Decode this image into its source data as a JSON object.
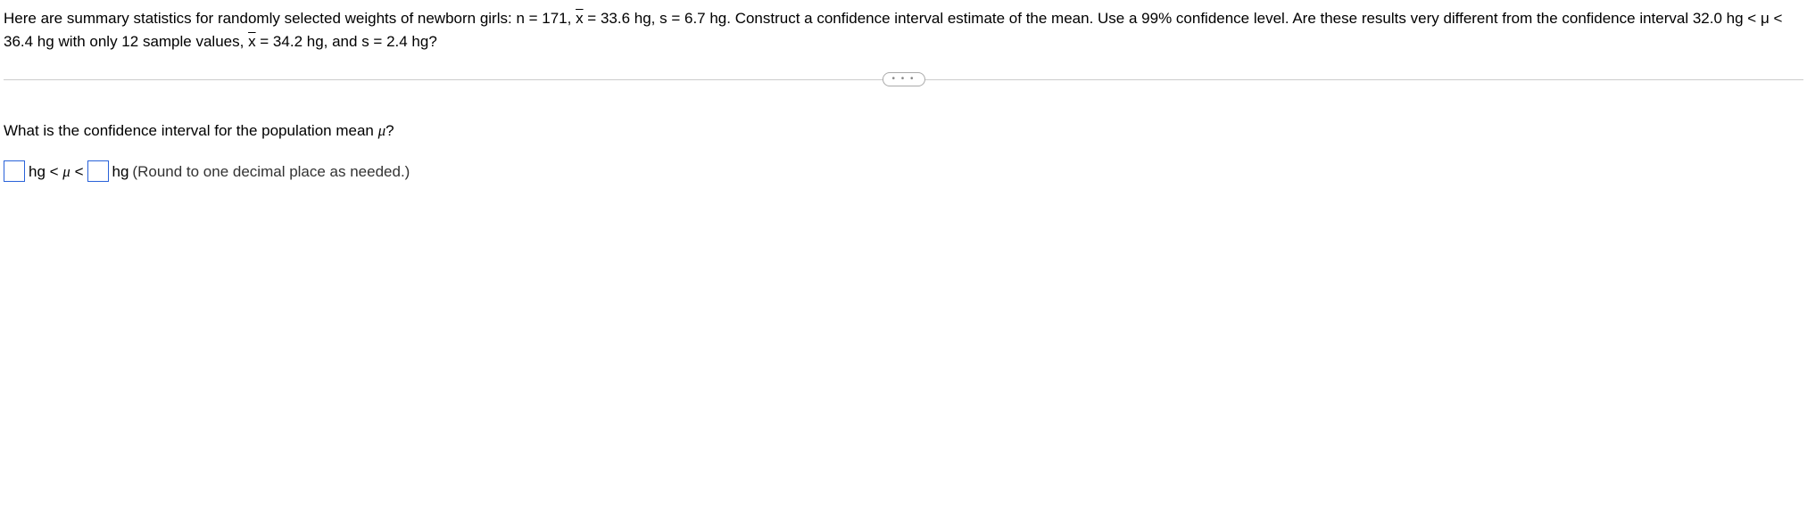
{
  "problem": {
    "part1": "Here are summary statistics for randomly selected weights of newborn girls: n = 171, ",
    "xbar_label": "x",
    "part2": " = 33.6 hg, s = 6.7 hg. Construct a confidence interval estimate of the mean. Use a 99% confidence level. Are these results very different from the confidence interval 32.0 hg < μ < 36.4 hg with only 12 sample values, ",
    "xbar_label2": "x",
    "part3": " = 34.2 hg, and s = 2.4 hg?"
  },
  "divider": {
    "ellipsis": "• • •"
  },
  "question": {
    "text_part1": "What is the confidence interval for the population mean ",
    "mu": "μ",
    "text_part2": "?"
  },
  "answer": {
    "input1_value": "",
    "unit1": "hg < ",
    "mu": "μ",
    "lt2": " <",
    "input2_value": "",
    "unit2": "hg",
    "hint": "(Round to one decimal place as needed.)"
  }
}
